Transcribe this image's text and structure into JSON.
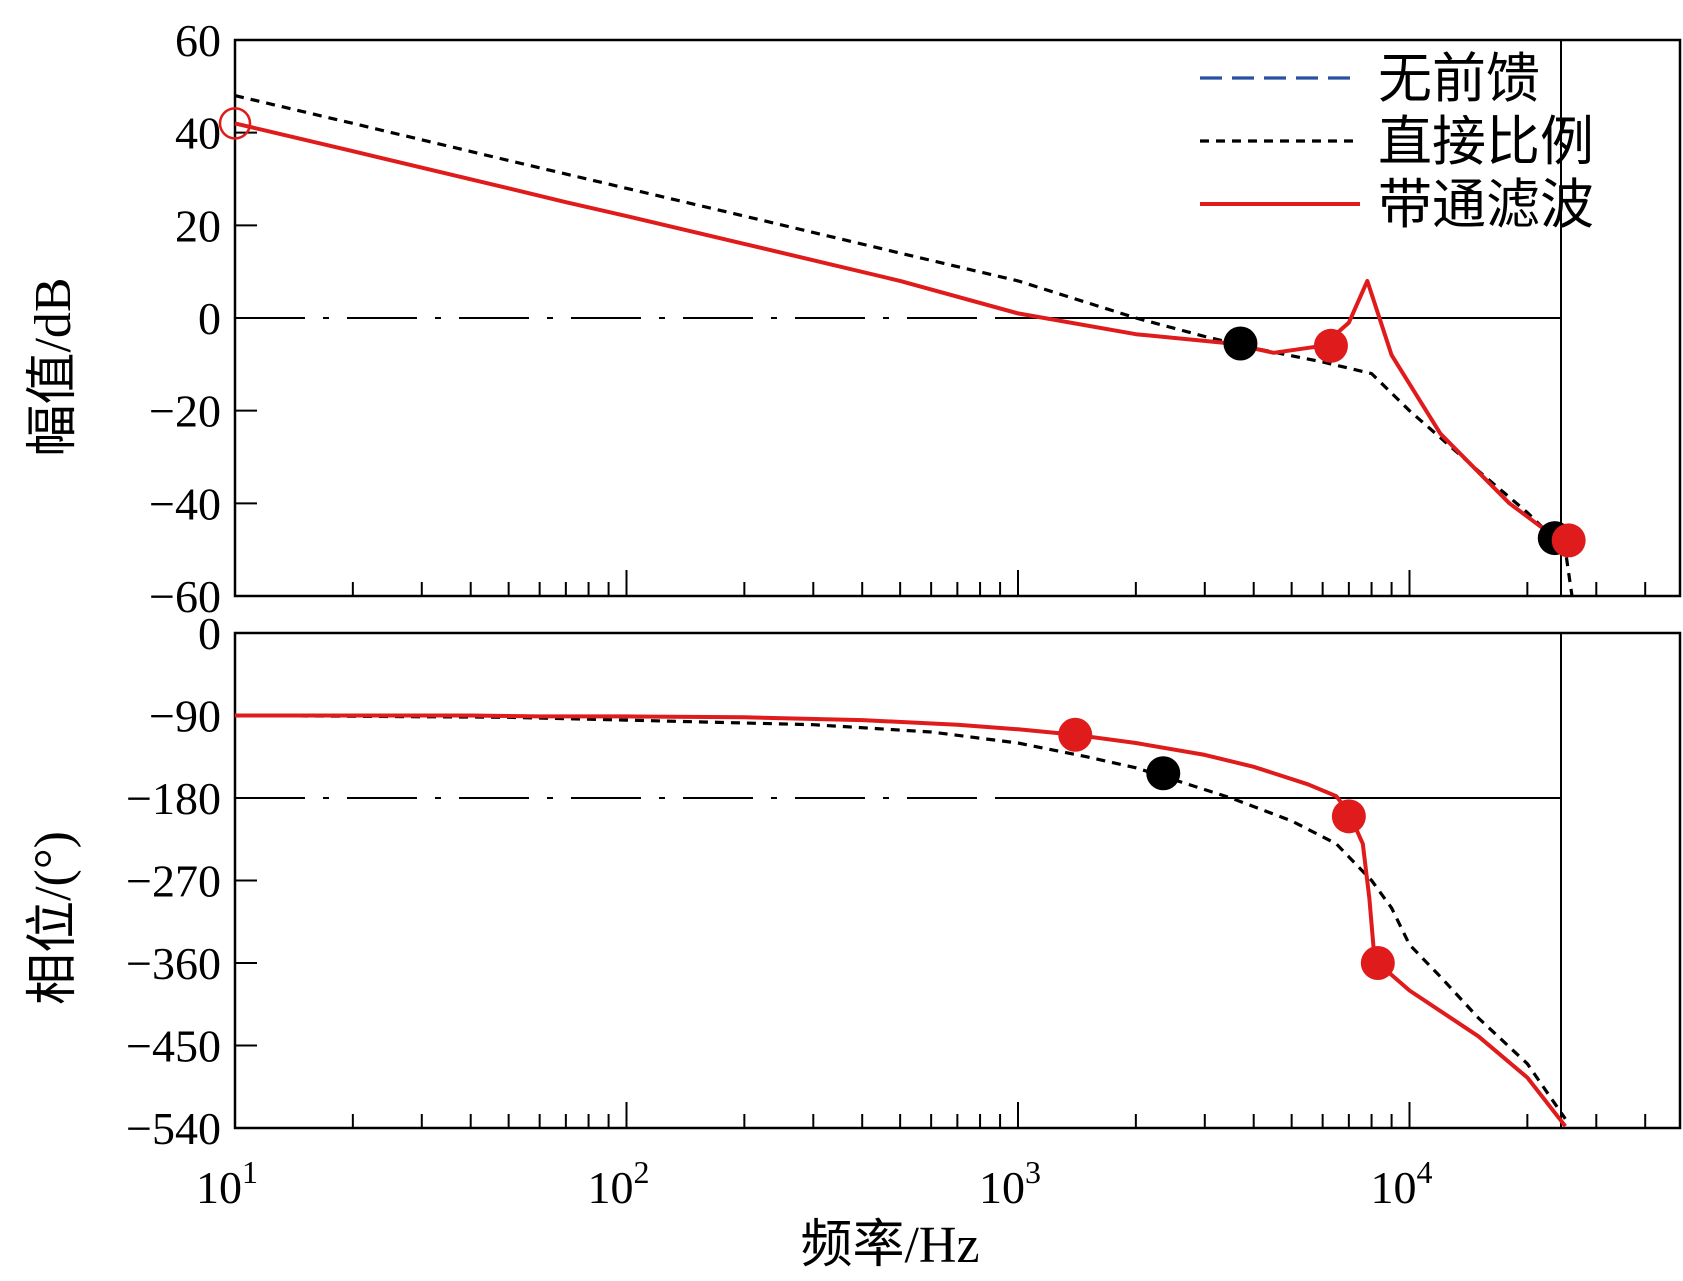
{
  "chart_data": [
    {
      "type": "line",
      "panel": "magnitude",
      "title": "",
      "xlabel": "",
      "ylabel": "幅值/dB",
      "x_scale": "log",
      "xlim": [
        10,
        50000
      ],
      "ylim": [
        -60,
        60
      ],
      "y_ticks": [
        60,
        40,
        20,
        0,
        -20,
        -40,
        -60
      ],
      "y_tick_labels": [
        "60",
        "40",
        "20",
        "0",
        "−20",
        "−40",
        "−60"
      ],
      "legend_position": "top-right",
      "series": [
        {
          "name": "无前馈",
          "color": "#2b4fa2",
          "style": "dashed",
          "points": [
            [
              10,
              42
            ],
            [
              20,
              36
            ],
            [
              50,
              28
            ],
            [
              70,
              25
            ],
            [
              100,
              22
            ],
            [
              200,
              16
            ],
            [
              500,
              8
            ],
            [
              1000,
              1
            ],
            [
              2000,
              -3.5
            ],
            [
              3500,
              -5.5
            ],
            [
              4500,
              -7.5
            ],
            [
              6000,
              -6
            ],
            [
              7000,
              -1
            ],
            [
              7800,
              8
            ],
            [
              9000,
              -8
            ],
            [
              12000,
              -25
            ],
            [
              18000,
              -40
            ],
            [
              25000,
              -49
            ]
          ]
        },
        {
          "name": "直接比例",
          "color": "#000000",
          "style": "dotted",
          "points": [
            [
              10,
              48
            ],
            [
              20,
              42
            ],
            [
              50,
              34
            ],
            [
              100,
              28
            ],
            [
              200,
              22
            ],
            [
              500,
              14
            ],
            [
              1000,
              8
            ],
            [
              2000,
              0
            ],
            [
              3000,
              -4
            ],
            [
              4000,
              -6.5
            ],
            [
              6000,
              -9.5
            ],
            [
              8000,
              -12
            ],
            [
              10000,
              -20
            ],
            [
              15000,
              -33
            ],
            [
              20000,
              -42
            ],
            [
              25000,
              -50
            ],
            [
              26000,
              -60
            ]
          ]
        },
        {
          "name": "带通滤波",
          "color": "#e01b1b",
          "style": "solid",
          "points": [
            [
              10,
              42
            ],
            [
              20,
              36
            ],
            [
              50,
              28
            ],
            [
              70,
              25
            ],
            [
              100,
              22
            ],
            [
              200,
              16
            ],
            [
              500,
              8
            ],
            [
              1000,
              1
            ],
            [
              2000,
              -3.5
            ],
            [
              3500,
              -5.5
            ],
            [
              4500,
              -7.5
            ],
            [
              6000,
              -6
            ],
            [
              7000,
              -1
            ],
            [
              7800,
              8
            ],
            [
              9000,
              -8
            ],
            [
              12000,
              -25
            ],
            [
              18000,
              -40
            ],
            [
              25000,
              -49
            ]
          ]
        }
      ],
      "markers": [
        {
          "x": 10,
          "y": 42,
          "color": "#e01b1b",
          "style": "open"
        },
        {
          "x": 3700,
          "y": -5.5,
          "color": "#000000",
          "style": "filled"
        },
        {
          "x": 6300,
          "y": -6,
          "color": "#e01b1b",
          "style": "filled"
        },
        {
          "x": 23500,
          "y": -47.5,
          "color": "#000000",
          "style": "filled"
        },
        {
          "x": 25500,
          "y": -48,
          "color": "#e01b1b",
          "style": "filled"
        }
      ]
    },
    {
      "type": "line",
      "panel": "phase",
      "title": "",
      "xlabel": "频率/Hz",
      "ylabel": "相位/(°)",
      "x_scale": "log",
      "xlim": [
        10,
        50000
      ],
      "ylim": [
        -540,
        0
      ],
      "y_ticks": [
        0,
        -90,
        -180,
        -270,
        -360,
        -450,
        -540
      ],
      "y_tick_labels": [
        "0",
        "−90",
        "−180",
        "−270",
        "−360",
        "−450",
        "−540"
      ],
      "x_ticks": [
        10,
        100,
        1000,
        10000
      ],
      "x_tick_labels": [
        {
          "base": "10",
          "exp": "1"
        },
        {
          "base": "10",
          "exp": "2"
        },
        {
          "base": "10",
          "exp": "3"
        },
        {
          "base": "10",
          "exp": "4"
        }
      ],
      "series": [
        {
          "name": "无前馈",
          "color": "#2b4fa2",
          "style": "dashed",
          "points": [
            [
              10,
              -90
            ],
            [
              40,
              -90
            ],
            [
              60,
              -91
            ],
            [
              100,
              -91
            ],
            [
              200,
              -92
            ],
            [
              400,
              -95
            ],
            [
              700,
              -100
            ],
            [
              1000,
              -105
            ],
            [
              1400,
              -111
            ],
            [
              2000,
              -120
            ],
            [
              3000,
              -133
            ],
            [
              4000,
              -146
            ],
            [
              5500,
              -165
            ],
            [
              6500,
              -178
            ],
            [
              7000,
              -196
            ],
            [
              7600,
              -230
            ],
            [
              7900,
              -290
            ],
            [
              8100,
              -345
            ],
            [
              8300,
              -360
            ],
            [
              10000,
              -390
            ],
            [
              15000,
              -440
            ],
            [
              20000,
              -485
            ],
            [
              25000,
              -538
            ]
          ]
        },
        {
          "name": "直接比例",
          "color": "#000000",
          "style": "dotted",
          "points": [
            [
              10,
              -90
            ],
            [
              50,
              -92
            ],
            [
              100,
              -95
            ],
            [
              300,
              -100
            ],
            [
              600,
              -108
            ],
            [
              1000,
              -120
            ],
            [
              1500,
              -135
            ],
            [
              2000,
              -147
            ],
            [
              2500,
              -160
            ],
            [
              3500,
              -180
            ],
            [
              5000,
              -205
            ],
            [
              6500,
              -230
            ],
            [
              8000,
              -270
            ],
            [
              9000,
              -300
            ],
            [
              10000,
              -340
            ],
            [
              12000,
              -375
            ],
            [
              15000,
              -420
            ],
            [
              20000,
              -470
            ],
            [
              25000,
              -530
            ]
          ]
        },
        {
          "name": "带通滤波",
          "color": "#e01b1b",
          "style": "solid",
          "points": [
            [
              10,
              -90
            ],
            [
              40,
              -90
            ],
            [
              60,
              -91
            ],
            [
              100,
              -91
            ],
            [
              200,
              -92
            ],
            [
              400,
              -95
            ],
            [
              700,
              -100
            ],
            [
              1000,
              -105
            ],
            [
              1400,
              -111
            ],
            [
              2000,
              -120
            ],
            [
              3000,
              -133
            ],
            [
              4000,
              -146
            ],
            [
              5500,
              -165
            ],
            [
              6500,
              -178
            ],
            [
              7000,
              -196
            ],
            [
              7600,
              -230
            ],
            [
              7900,
              -290
            ],
            [
              8100,
              -345
            ],
            [
              8300,
              -360
            ],
            [
              10000,
              -390
            ],
            [
              15000,
              -440
            ],
            [
              20000,
              -485
            ],
            [
              25000,
              -538
            ]
          ]
        }
      ],
      "markers": [
        {
          "x": 1400,
          "y": -111,
          "color": "#e01b1b",
          "style": "filled"
        },
        {
          "x": 2350,
          "y": -153,
          "color": "#000000",
          "style": "filled"
        },
        {
          "x": 7000,
          "y": -200,
          "color": "#e01b1b",
          "style": "filled"
        },
        {
          "x": 8300,
          "y": -360,
          "color": "#e01b1b",
          "style": "filled"
        }
      ]
    }
  ]
}
